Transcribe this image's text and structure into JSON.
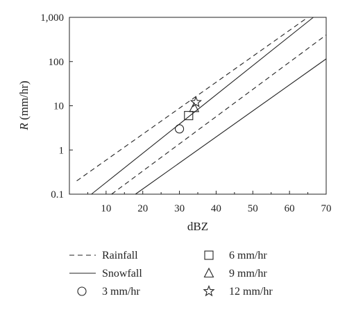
{
  "chart_data": {
    "type": "line",
    "title": "",
    "xlabel": "dBZ",
    "ylabel": "(mm/hr)",
    "ylabel_symbol": "R",
    "xlim": [
      0,
      70
    ],
    "ylim": [
      0.1,
      1000
    ],
    "yscale": "log",
    "grid": false,
    "x_ticks": [
      10,
      20,
      30,
      40,
      50,
      60,
      70
    ],
    "x_tick_labels": [
      "10",
      "20",
      "30",
      "40",
      "50",
      "60",
      "70"
    ],
    "y_ticks": [
      0.1,
      1,
      10,
      100,
      1000
    ],
    "y_tick_labels": [
      "0.1",
      "1",
      "10",
      "100",
      "1,000"
    ],
    "series": [
      {
        "kind": "line",
        "style": "dashed",
        "x": [
          2,
          65
        ],
        "y": [
          0.2,
          1000
        ]
      },
      {
        "kind": "line",
        "style": "solid",
        "x": [
          6,
          66.5
        ],
        "y": [
          0.1,
          1000
        ]
      },
      {
        "kind": "line",
        "style": "dashed",
        "x": [
          11.5,
          70
        ],
        "y": [
          0.1,
          400
        ]
      },
      {
        "kind": "line",
        "style": "solid",
        "x": [
          18,
          70
        ],
        "y": [
          0.1,
          115
        ]
      },
      {
        "kind": "point",
        "marker": "circle",
        "x": [
          30
        ],
        "y": [
          3
        ]
      },
      {
        "kind": "point",
        "marker": "square",
        "x": [
          32.5
        ],
        "y": [
          6
        ]
      },
      {
        "kind": "point",
        "marker": "triangle",
        "x": [
          34
        ],
        "y": [
          9
        ]
      },
      {
        "kind": "point",
        "marker": "star",
        "x": [
          34.5
        ],
        "y": [
          12
        ]
      }
    ],
    "legend": {
      "placement": "bottom",
      "entries": [
        {
          "label": "Rainfall",
          "symbol": "dashed-line"
        },
        {
          "label": "6 mm/hr",
          "symbol": "square"
        },
        {
          "label": "Snowfall",
          "symbol": "solid-line"
        },
        {
          "label": "9 mm/hr",
          "symbol": "triangle"
        },
        {
          "label": "3 mm/hr",
          "symbol": "circle"
        },
        {
          "label": "12 mm/hr",
          "symbol": "star"
        }
      ]
    }
  }
}
